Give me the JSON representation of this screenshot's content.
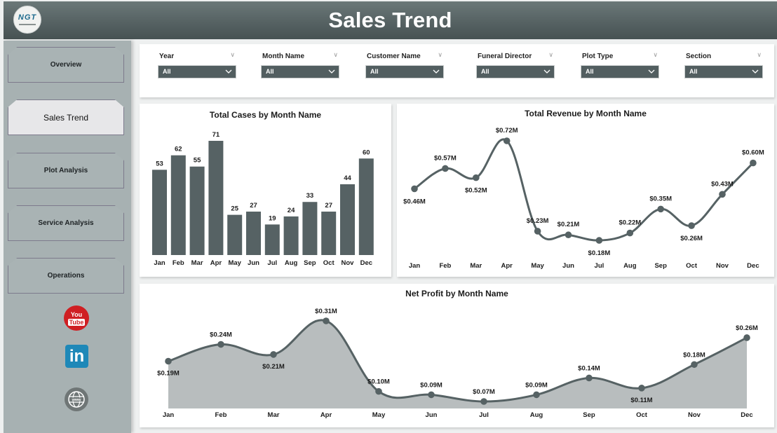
{
  "header": {
    "title": "Sales Trend",
    "logo_text": "NGT"
  },
  "sidebar": {
    "items": [
      {
        "label": "Overview",
        "active": false
      },
      {
        "label": "Sales Trend",
        "active": true
      },
      {
        "label": "Plot Analysis",
        "active": false
      },
      {
        "label": "Service Analysis",
        "active": false
      },
      {
        "label": "Operations",
        "active": false
      }
    ],
    "social": [
      {
        "name": "youtube-icon",
        "line1": "You",
        "line2": "Tube"
      },
      {
        "name": "linkedin-icon",
        "text": "in"
      },
      {
        "name": "website-icon",
        "text": "www"
      }
    ]
  },
  "filters": [
    {
      "label": "Year",
      "value": "All"
    },
    {
      "label": "Month Name",
      "value": "All"
    },
    {
      "label": "Customer Name",
      "value": "All"
    },
    {
      "label": "Funeral Director",
      "value": "All"
    },
    {
      "label": "Plot Type",
      "value": "All"
    },
    {
      "label": "Section",
      "value": "All"
    }
  ],
  "colors": {
    "header": "#566263",
    "sidebar": "#a7b1b2",
    "series": "#566264",
    "area": "#b8bdbe",
    "slicer": "#525e60"
  },
  "chart_data": [
    {
      "type": "bar",
      "title": "Total Cases by Month Name",
      "categories": [
        "Jan",
        "Feb",
        "Mar",
        "Apr",
        "May",
        "Jun",
        "Jul",
        "Aug",
        "Sep",
        "Oct",
        "Nov",
        "Dec"
      ],
      "values": [
        53,
        62,
        55,
        71,
        25,
        27,
        19,
        24,
        33,
        27,
        44,
        60
      ],
      "labels": [
        "53",
        "62",
        "55",
        "71",
        "25",
        "27",
        "19",
        "24",
        "33",
        "27",
        "44",
        "60"
      ],
      "xlabel": "",
      "ylabel": "",
      "ylim": [
        0,
        71
      ],
      "grid": false
    },
    {
      "type": "line",
      "title": "Total Revenue by Month Name",
      "categories": [
        "Jan",
        "Feb",
        "Mar",
        "Apr",
        "May",
        "Jun",
        "Jul",
        "Aug",
        "Sep",
        "Oct",
        "Nov",
        "Dec"
      ],
      "values": [
        0.46,
        0.57,
        0.52,
        0.72,
        0.23,
        0.21,
        0.18,
        0.22,
        0.35,
        0.26,
        0.43,
        0.6
      ],
      "labels": [
        "$0.46M",
        "$0.57M",
        "$0.52M",
        "$0.72M",
        "$0.23M",
        "$0.21M",
        "$0.18M",
        "$0.22M",
        "$0.35M",
        "$0.26M",
        "$0.43M",
        "$0.60M"
      ],
      "label_pos": [
        "below",
        "above",
        "below",
        "above",
        "above",
        "above",
        "below",
        "above",
        "above",
        "below",
        "above",
        "above"
      ],
      "xlabel": "",
      "ylabel": "",
      "unit": "$M",
      "grid": false
    },
    {
      "type": "area",
      "title": "Net Profit by Month Name",
      "categories": [
        "Jan",
        "Feb",
        "Mar",
        "Apr",
        "May",
        "Jun",
        "Jul",
        "Aug",
        "Sep",
        "Oct",
        "Nov",
        "Dec"
      ],
      "values": [
        0.19,
        0.24,
        0.21,
        0.31,
        0.1,
        0.09,
        0.07,
        0.09,
        0.14,
        0.11,
        0.18,
        0.26
      ],
      "labels": [
        "$0.19M",
        "$0.24M",
        "$0.21M",
        "$0.31M",
        "$0.10M",
        "$0.09M",
        "$0.07M",
        "$0.09M",
        "$0.14M",
        "$0.11M",
        "$0.18M",
        "$0.26M"
      ],
      "label_pos": [
        "below",
        "above",
        "below",
        "above",
        "above",
        "above",
        "above",
        "above",
        "above",
        "below",
        "above",
        "above"
      ],
      "xlabel": "",
      "ylabel": "",
      "unit": "$M",
      "grid": false
    }
  ]
}
